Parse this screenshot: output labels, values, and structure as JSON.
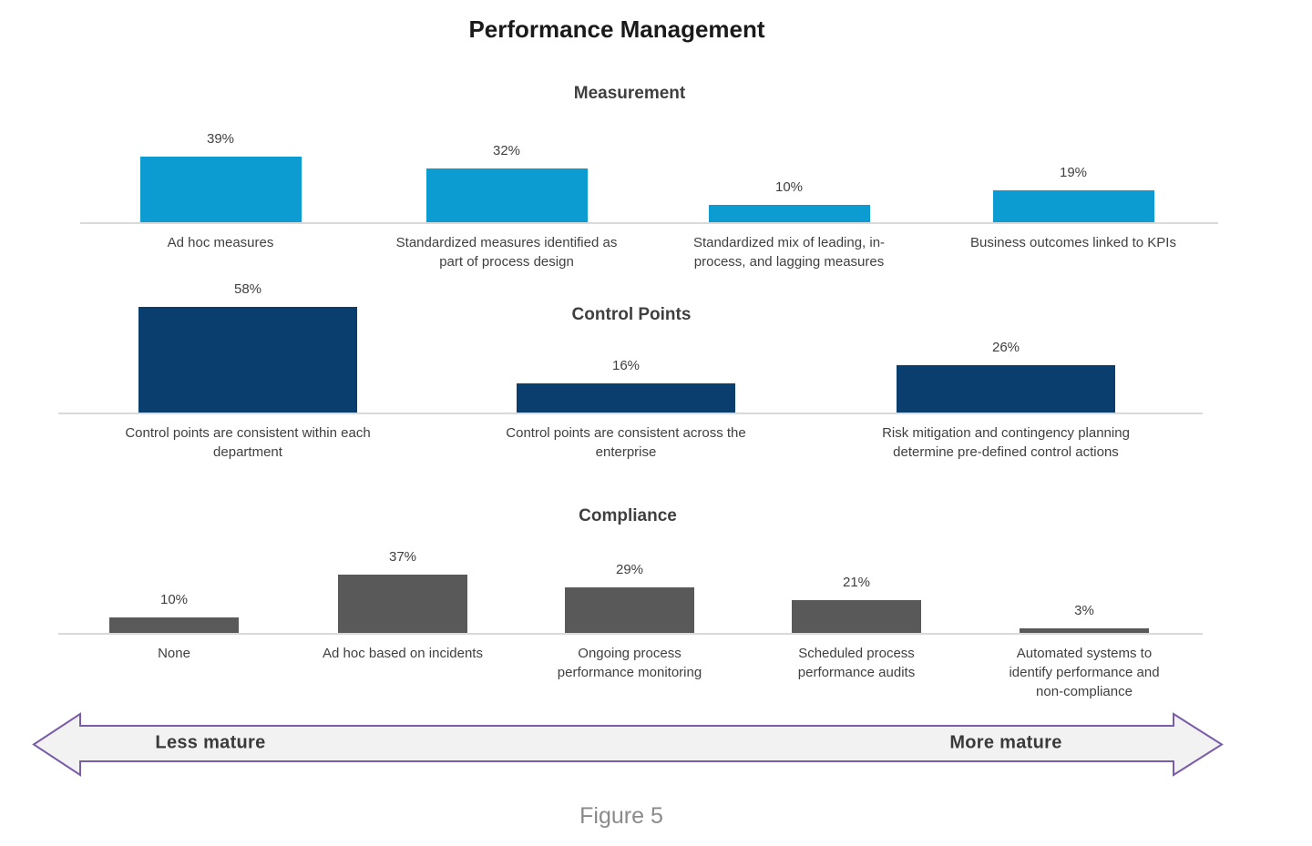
{
  "page": {
    "title": "Performance Management",
    "figure_caption": "Figure 5"
  },
  "colors": {
    "measurement_bar": "#0d9cd2",
    "control_points_bar": "#0a3e6f",
    "compliance_bar": "#595959",
    "baseline": "#d9d9d9",
    "arrow_fill": "#f2f2f2",
    "arrow_stroke": "#7a5da8",
    "text": "#404040"
  },
  "chart_data": [
    {
      "type": "bar",
      "title": "Measurement",
      "categories": [
        "Ad hoc measures",
        "Standardized measures identified as\npart of process design",
        "Standardized  mix of leading, in-\nprocess, and lagging measures",
        "Business outcomes linked to KPIs"
      ],
      "values": [
        39,
        32,
        10,
        19
      ],
      "data_labels": [
        "39%",
        "32%",
        "10%",
        "19%"
      ],
      "unit": "percent",
      "ylim": [
        0,
        60
      ],
      "grid": false,
      "legend": "none",
      "bar_color": "#0d9cd2"
    },
    {
      "type": "bar",
      "title": "Control Points",
      "categories": [
        "Control points are consistent within each\ndepartment",
        "Control points are consistent across the\nenterprise",
        "Risk mitigation and contingency planning\ndetermine pre-defined control actions"
      ],
      "values": [
        58,
        16,
        26
      ],
      "data_labels": [
        "58%",
        "16%",
        "26%"
      ],
      "unit": "percent",
      "ylim": [
        0,
        60
      ],
      "grid": false,
      "legend": "none",
      "bar_color": "#0a3e6f"
    },
    {
      "type": "bar",
      "title": "Compliance",
      "categories": [
        "None",
        "Ad hoc based on incidents",
        "Ongoing process\nperformance monitoring",
        "Scheduled process\nperformance audits",
        "Automated systems to\nidentify performance and\nnon-compliance"
      ],
      "values": [
        10,
        37,
        29,
        21,
        3
      ],
      "data_labels": [
        "10%",
        "37%",
        "29%",
        "21%",
        "3%"
      ],
      "unit": "percent",
      "ylim": [
        0,
        40
      ],
      "grid": false,
      "legend": "none",
      "bar_color": "#595959"
    }
  ],
  "maturity_arrow": {
    "left_label": "Less mature",
    "right_label": "More mature"
  }
}
